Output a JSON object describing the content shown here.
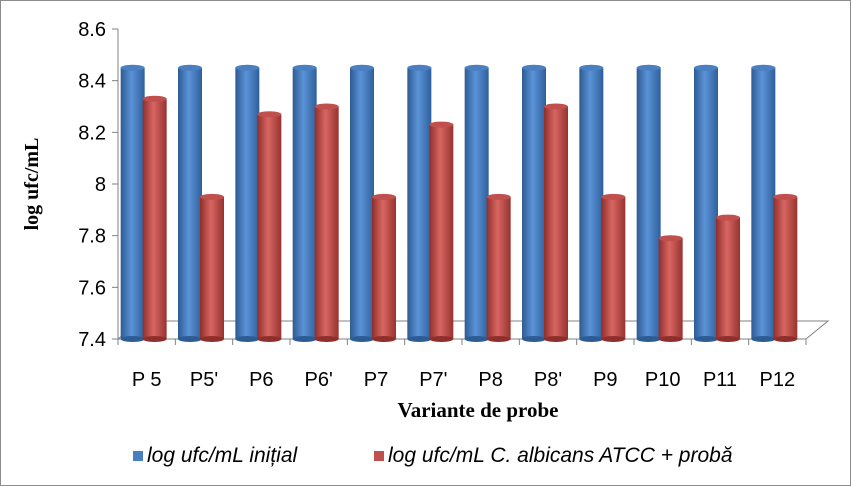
{
  "chart_data": {
    "type": "bar",
    "xlabel": "Variante de probe",
    "ylabel": "log ufc/mL",
    "ylim": [
      7.4,
      8.6
    ],
    "yticks": [
      "8.6",
      "8.4",
      "8.2",
      "8",
      "7.8",
      "7.6",
      "7.4"
    ],
    "categories": [
      "P 5",
      "P5'",
      "P6",
      "P6'",
      "P7",
      "P7'",
      "P8",
      "P8'",
      "P9",
      "P10",
      "P11",
      "P12"
    ],
    "series": [
      {
        "name": "log ufc/mL inițial",
        "color": "#4a7fc1",
        "values": [
          8.45,
          8.45,
          8.45,
          8.45,
          8.45,
          8.45,
          8.45,
          8.45,
          8.45,
          8.45,
          8.45,
          8.45
        ]
      },
      {
        "name": "log ufc/mL  C. albicans ATCC + probă",
        "color": "#c0504d",
        "values": [
          8.33,
          7.95,
          8.27,
          8.3,
          7.95,
          8.23,
          7.95,
          8.3,
          7.95,
          7.79,
          7.87,
          7.95
        ]
      }
    ],
    "grid": false,
    "legend_position": "bottom"
  }
}
